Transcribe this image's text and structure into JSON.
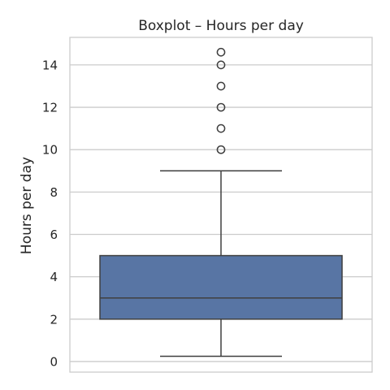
{
  "chart_data": {
    "type": "boxplot",
    "title": "Boxplot – Hours per day",
    "xlabel": "",
    "ylabel": "Hours per day",
    "ylim": [
      -0.5,
      15.3
    ],
    "yticks": [
      0,
      2,
      4,
      6,
      8,
      10,
      12,
      14
    ],
    "grid": true,
    "box": {
      "whisker_low": 0.25,
      "q1": 2,
      "median": 3,
      "q3": 5,
      "whisker_high": 9
    },
    "outliers": [
      10,
      11,
      12,
      13,
      14,
      14.6
    ],
    "colors": {
      "box_fill": "#5875a4",
      "line": "#3f3f3f",
      "grid": "#cccccc",
      "frame": "#cccccc"
    }
  }
}
